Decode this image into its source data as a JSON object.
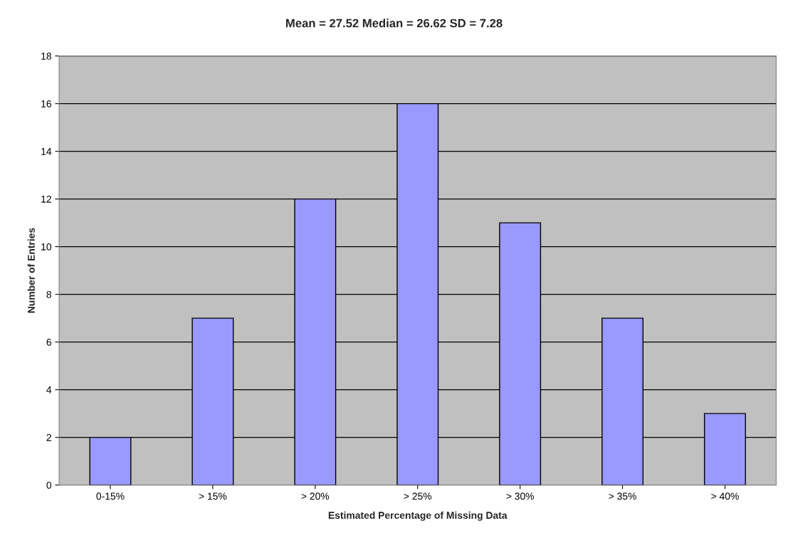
{
  "chart_data": {
    "type": "bar",
    "title": "Mean = 27.52 Median = 26.62 SD = 7.28",
    "xlabel": "Estimated Percentage of Missing Data",
    "ylabel": "Number of Entries",
    "categories": [
      "0-15%",
      "> 15%",
      "> 20%",
      "> 25%",
      "> 30%",
      "> 35%",
      "> 40%"
    ],
    "values": [
      2,
      7,
      12,
      16,
      11,
      7,
      3
    ],
    "color": "#9999ff",
    "ylim": [
      0,
      18
    ],
    "yticks": [
      0,
      2,
      4,
      6,
      8,
      10,
      12,
      14,
      16,
      18
    ],
    "grid": "y",
    "legend": false
  }
}
